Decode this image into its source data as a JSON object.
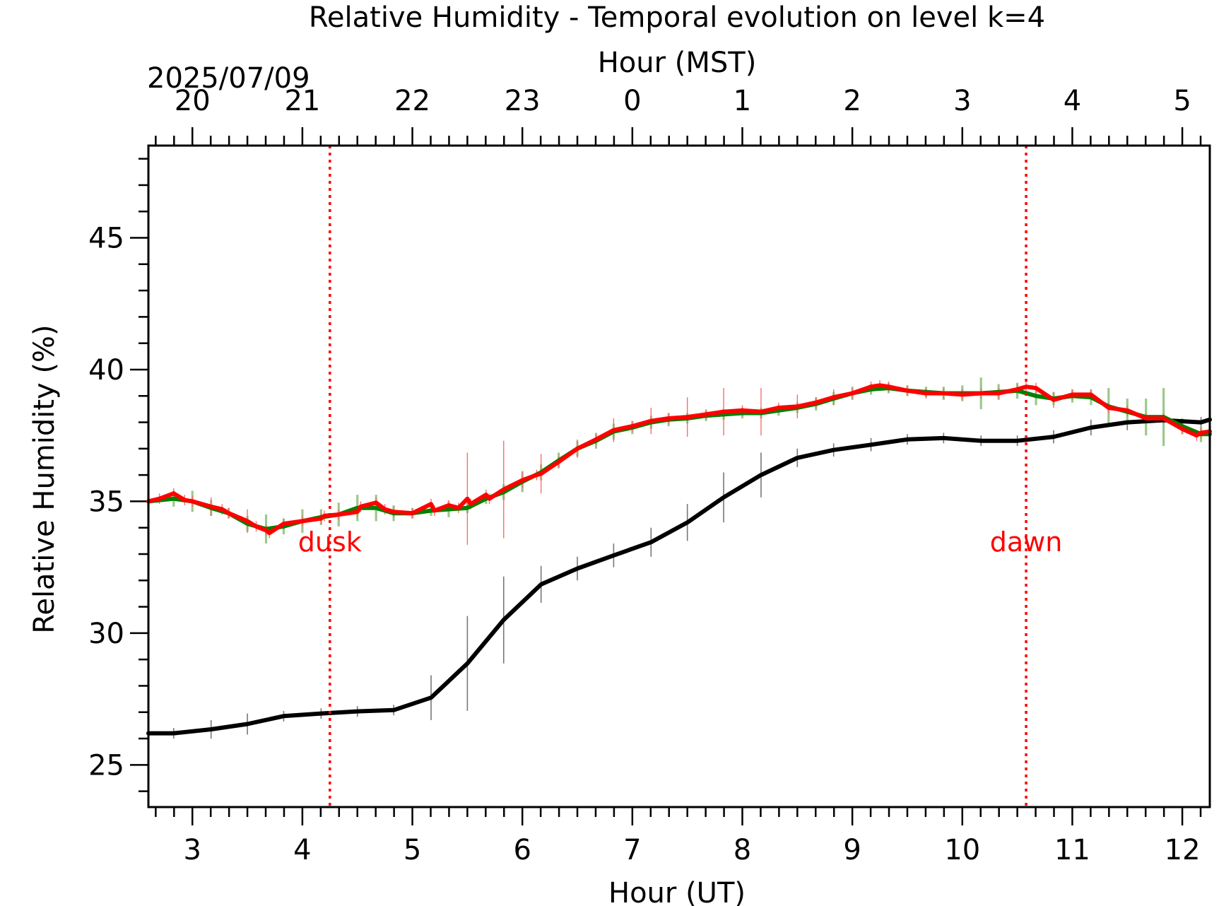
{
  "chart_data": {
    "type": "line",
    "title": "Relative Humidity - Temporal evolution on level k=4",
    "xlabel": "Hour (UT)",
    "ylabel": "Relative Humidity (%)",
    "top_xlabel": "Hour (MST)",
    "date_label": "2025/07/09",
    "xlim": [
      2.6,
      12.25
    ],
    "ylim": [
      23.4,
      48.5
    ],
    "x_ticks": [
      "3",
      "4",
      "5",
      "6",
      "7",
      "8",
      "9",
      "10",
      "11",
      "12"
    ],
    "x_tick_values": [
      3,
      4,
      5,
      6,
      7,
      8,
      9,
      10,
      11,
      12
    ],
    "top_ticks": [
      "20",
      "21",
      "22",
      "23",
      "0",
      "1",
      "2",
      "3",
      "4",
      "5"
    ],
    "top_tick_values": [
      3,
      4,
      5,
      6,
      7,
      8,
      9,
      10,
      11,
      12
    ],
    "y_ticks": [
      "25",
      "30",
      "35",
      "40",
      "45"
    ],
    "y_tick_values": [
      25,
      30,
      35,
      40,
      45
    ],
    "grid": false,
    "colors": {
      "dusk_dawn": "#ff0000",
      "red_series": "#ff0000",
      "green_series": "#008000",
      "green_err": "#9bc98a",
      "red_err": "#ff6b6b",
      "black_series": "#000000",
      "black_err": "#777777"
    },
    "markers": [
      {
        "label": "dusk",
        "x": 4.25
      },
      {
        "label": "dawn",
        "x": 10.58
      }
    ],
    "series": [
      {
        "color": "#000000",
        "x": [
          2.6,
          2.83,
          3.17,
          3.5,
          3.83,
          4.17,
          4.5,
          4.83,
          5.17,
          5.5,
          5.83,
          6.17,
          6.5,
          6.83,
          7.17,
          7.5,
          7.83,
          8.17,
          8.5,
          8.83,
          9.17,
          9.5,
          9.83,
          10.17,
          10.5,
          10.83,
          11.17,
          11.5,
          11.83,
          12.17,
          12.25
        ],
        "y": [
          26.2,
          26.2,
          26.35,
          26.55,
          26.85,
          26.95,
          27.03,
          27.08,
          27.55,
          28.85,
          30.5,
          31.85,
          32.45,
          32.95,
          33.45,
          34.2,
          35.15,
          36.0,
          36.65,
          36.95,
          37.15,
          37.35,
          37.4,
          37.3,
          37.3,
          37.45,
          37.8,
          38.0,
          38.08,
          38.0,
          38.1
        ],
        "errors": [
          0.2,
          0.2,
          0.35,
          0.4,
          0.2,
          0.2,
          0.2,
          0.2,
          0.85,
          1.8,
          1.65,
          0.7,
          0.45,
          0.45,
          0.55,
          0.7,
          0.95,
          0.85,
          0.35,
          0.25,
          0.25,
          0.2,
          0.2,
          0.2,
          0.2,
          0.25,
          0.3,
          0.3,
          0.2,
          0.2,
          0.2
        ]
      },
      {
        "color": "#008000",
        "x": [
          2.6,
          2.83,
          3.0,
          3.17,
          3.33,
          3.5,
          3.67,
          3.83,
          4.0,
          4.17,
          4.33,
          4.5,
          4.67,
          4.83,
          5.0,
          5.17,
          5.33,
          5.5,
          5.67,
          5.83,
          6.0,
          6.17,
          6.33,
          6.5,
          6.67,
          6.83,
          7.0,
          7.17,
          7.33,
          7.5,
          7.67,
          7.83,
          8.0,
          8.17,
          8.33,
          8.5,
          8.67,
          8.83,
          9.0,
          9.17,
          9.33,
          9.5,
          9.67,
          9.83,
          10.0,
          10.17,
          10.33,
          10.5,
          10.67,
          10.83,
          11.0,
          11.17,
          11.33,
          11.5,
          11.67,
          11.83,
          12.0,
          12.17,
          12.25
        ],
        "y": [
          35.0,
          35.1,
          35.0,
          34.75,
          34.55,
          34.15,
          33.95,
          34.05,
          34.25,
          34.4,
          34.5,
          34.75,
          34.75,
          34.55,
          34.55,
          34.65,
          34.7,
          34.75,
          35.1,
          35.35,
          35.75,
          36.1,
          36.55,
          37.0,
          37.3,
          37.65,
          37.8,
          38.0,
          38.1,
          38.15,
          38.25,
          38.3,
          38.35,
          38.35,
          38.45,
          38.55,
          38.7,
          38.9,
          39.1,
          39.25,
          39.3,
          39.2,
          39.15,
          39.1,
          39.1,
          39.1,
          39.15,
          39.2,
          39.0,
          38.9,
          39.0,
          38.95,
          38.6,
          38.4,
          38.2,
          38.2,
          37.85,
          37.55,
          37.55
        ],
        "errors": [
          0.3,
          0.3,
          0.4,
          0.3,
          0.2,
          0.3,
          0.55,
          0.3,
          0.45,
          0.3,
          0.45,
          0.5,
          0.5,
          0.3,
          0.2,
          0.2,
          0.3,
          0.2,
          0.2,
          0.3,
          0.4,
          0.3,
          0.3,
          0.3,
          0.3,
          0.3,
          0.25,
          0.25,
          0.25,
          0.2,
          0.2,
          0.2,
          0.2,
          0.2,
          0.2,
          0.2,
          0.25,
          0.25,
          0.25,
          0.2,
          0.2,
          0.2,
          0.2,
          0.25,
          0.3,
          0.6,
          0.3,
          0.3,
          0.35,
          0.25,
          0.25,
          0.3,
          0.7,
          0.5,
          0.7,
          1.1,
          0.3,
          0.3,
          0.3
        ]
      },
      {
        "color": "#ff0000",
        "x": [
          2.6,
          2.7,
          2.83,
          2.93,
          3.0,
          3.17,
          3.27,
          3.33,
          3.5,
          3.58,
          3.67,
          3.7,
          3.83,
          4.0,
          4.17,
          4.2,
          4.33,
          4.5,
          4.53,
          4.67,
          4.75,
          4.83,
          5.0,
          5.17,
          5.2,
          5.33,
          5.42,
          5.5,
          5.53,
          5.67,
          5.7,
          5.83,
          6.0,
          6.13,
          6.17,
          6.33,
          6.5,
          6.67,
          6.83,
          7.0,
          7.17,
          7.33,
          7.5,
          7.67,
          7.83,
          8.0,
          8.17,
          8.33,
          8.5,
          8.67,
          8.83,
          9.0,
          9.17,
          9.25,
          9.33,
          9.5,
          9.67,
          9.83,
          10.0,
          10.17,
          10.33,
          10.5,
          10.58,
          10.67,
          10.83,
          11.0,
          11.17,
          11.33,
          11.5,
          11.67,
          11.83,
          12.0,
          12.13,
          12.17,
          12.25
        ],
        "y": [
          35.0,
          35.1,
          35.3,
          35.05,
          35.0,
          34.8,
          34.7,
          34.55,
          34.25,
          34.05,
          33.9,
          33.8,
          34.15,
          34.25,
          34.35,
          34.45,
          34.5,
          34.6,
          34.8,
          34.95,
          34.7,
          34.6,
          34.55,
          34.9,
          34.65,
          34.85,
          34.75,
          35.1,
          34.9,
          35.25,
          35.1,
          35.45,
          35.8,
          36.0,
          36.05,
          36.5,
          37.0,
          37.35,
          37.7,
          37.85,
          38.05,
          38.15,
          38.2,
          38.3,
          38.4,
          38.45,
          38.4,
          38.55,
          38.6,
          38.75,
          38.95,
          39.1,
          39.35,
          39.4,
          39.35,
          39.2,
          39.1,
          39.1,
          39.05,
          39.1,
          39.1,
          39.25,
          39.35,
          39.3,
          38.85,
          39.05,
          39.05,
          38.55,
          38.45,
          38.15,
          38.15,
          37.75,
          37.5,
          37.6,
          37.65
        ],
        "errors": [
          0.2,
          0.2,
          0.2,
          0.2,
          0.2,
          0.35,
          0.2,
          0.2,
          0.45,
          0.2,
          0.2,
          0.2,
          0.2,
          0.2,
          0.2,
          0.2,
          0.2,
          0.2,
          0.2,
          0.2,
          0.2,
          0.2,
          0.2,
          0.2,
          0.2,
          0.2,
          0.2,
          1.75,
          0.2,
          0.2,
          0.2,
          1.85,
          0.3,
          0.2,
          0.75,
          0.2,
          0.35,
          0.2,
          0.45,
          0.2,
          0.5,
          0.2,
          0.75,
          0.2,
          0.9,
          0.2,
          0.9,
          0.2,
          0.45,
          0.2,
          0.3,
          0.2,
          0.2,
          0.2,
          0.2,
          0.2,
          0.2,
          0.2,
          0.2,
          0.2,
          0.2,
          0.2,
          0.2,
          0.2,
          0.3,
          0.2,
          0.2,
          0.2,
          0.2,
          0.2,
          0.2,
          0.2,
          0.2,
          0.2,
          0.2
        ]
      }
    ]
  }
}
